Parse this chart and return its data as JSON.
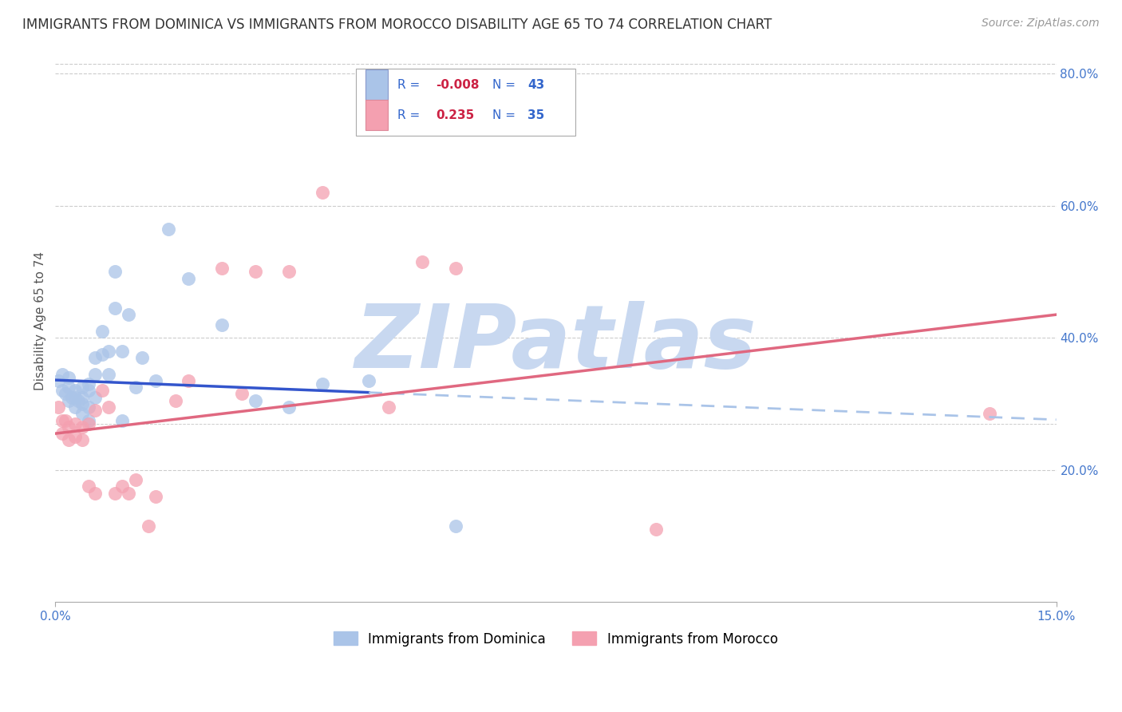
{
  "title": "IMMIGRANTS FROM DOMINICA VS IMMIGRANTS FROM MOROCCO DISABILITY AGE 65 TO 74 CORRELATION CHART",
  "source": "Source: ZipAtlas.com",
  "ylabel": "Disability Age 65 to 74",
  "xlim": [
    0.0,
    0.15
  ],
  "ylim": [
    0.0,
    0.85
  ],
  "right_yticks": [
    0.2,
    0.4,
    0.6,
    0.8
  ],
  "right_yticklabels": [
    "20.0%",
    "40.0%",
    "60.0%",
    "80.0%"
  ],
  "grid_color": "#cccccc",
  "background_color": "#ffffff",
  "dominica_color": "#aac4e8",
  "morocco_color": "#f4a0b0",
  "dominica_edge_color": "#7799cc",
  "morocco_edge_color": "#dd8899",
  "dominica_R": -0.008,
  "dominica_N": 43,
  "morocco_R": 0.235,
  "morocco_N": 35,
  "dominica_x": [
    0.0005,
    0.001,
    0.001,
    0.0015,
    0.002,
    0.002,
    0.002,
    0.0025,
    0.003,
    0.003,
    0.003,
    0.0035,
    0.004,
    0.004,
    0.004,
    0.004,
    0.005,
    0.005,
    0.005,
    0.005,
    0.006,
    0.006,
    0.006,
    0.007,
    0.007,
    0.008,
    0.008,
    0.009,
    0.009,
    0.01,
    0.01,
    0.011,
    0.012,
    0.013,
    0.015,
    0.017,
    0.02,
    0.025,
    0.03,
    0.035,
    0.04,
    0.047,
    0.06
  ],
  "dominica_y": [
    0.335,
    0.345,
    0.32,
    0.315,
    0.34,
    0.325,
    0.305,
    0.31,
    0.32,
    0.31,
    0.295,
    0.305,
    0.325,
    0.31,
    0.3,
    0.285,
    0.33,
    0.32,
    0.295,
    0.275,
    0.37,
    0.345,
    0.31,
    0.41,
    0.375,
    0.345,
    0.38,
    0.445,
    0.5,
    0.38,
    0.275,
    0.435,
    0.325,
    0.37,
    0.335,
    0.565,
    0.49,
    0.42,
    0.305,
    0.295,
    0.33,
    0.335,
    0.115
  ],
  "morocco_x": [
    0.0005,
    0.001,
    0.001,
    0.0015,
    0.002,
    0.002,
    0.003,
    0.003,
    0.004,
    0.004,
    0.005,
    0.005,
    0.006,
    0.006,
    0.007,
    0.008,
    0.009,
    0.01,
    0.011,
    0.012,
    0.014,
    0.015,
    0.018,
    0.02,
    0.025,
    0.028,
    0.03,
    0.035,
    0.04,
    0.05,
    0.055,
    0.06,
    0.07,
    0.09,
    0.14
  ],
  "morocco_y": [
    0.295,
    0.275,
    0.255,
    0.275,
    0.265,
    0.245,
    0.27,
    0.25,
    0.265,
    0.245,
    0.27,
    0.175,
    0.165,
    0.29,
    0.32,
    0.295,
    0.165,
    0.175,
    0.165,
    0.185,
    0.115,
    0.16,
    0.305,
    0.335,
    0.505,
    0.315,
    0.5,
    0.5,
    0.62,
    0.295,
    0.515,
    0.505,
    0.755,
    0.11,
    0.285
  ],
  "dominica_line_x_solid_end": 0.047,
  "dominica_line_intercept": 0.336,
  "dominica_line_slope": -0.4,
  "morocco_line_intercept": 0.255,
  "morocco_line_slope": 1.2,
  "watermark_text": "ZIPatlas",
  "watermark_color": "#c8d8f0",
  "watermark_fontsize": 80,
  "title_fontsize": 12,
  "source_fontsize": 10,
  "tick_label_color": "#4477cc",
  "ylabel_fontsize": 11
}
